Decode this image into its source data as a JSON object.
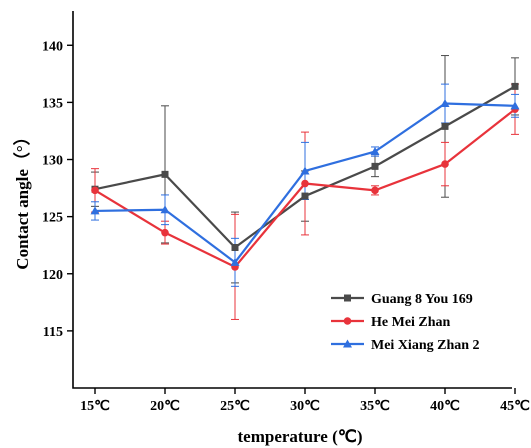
{
  "chart_data": {
    "type": "line",
    "title": "",
    "xlabel": "temperature (℃)",
    "ylabel": "Contact angle（°）",
    "categories": [
      "15℃",
      "20℃",
      "25℃",
      "30℃",
      "35℃",
      "40℃",
      "45℃"
    ],
    "ylim": [
      110,
      143
    ],
    "yticks": [
      115,
      120,
      125,
      130,
      135,
      140
    ],
    "grid": false,
    "legend_position": "bottom-right",
    "series": [
      {
        "name": "Guang 8 You 169",
        "color": "#4a4a4a",
        "marker": "square",
        "values": [
          127.4,
          128.7,
          122.3,
          126.8,
          129.4,
          132.9,
          136.4
        ],
        "errors": [
          1.5,
          6.0,
          3.1,
          2.2,
          0.9,
          6.2,
          2.5
        ]
      },
      {
        "name": "He Mei Zhan",
        "color": "#e8333b",
        "marker": "circle",
        "values": [
          127.3,
          123.6,
          120.6,
          127.9,
          127.3,
          129.6,
          134.4
        ],
        "errors": [
          1.9,
          1.0,
          4.6,
          4.5,
          0.4,
          1.9,
          2.2
        ]
      },
      {
        "name": "Mei Xiang Zhan 2",
        "color": "#2f6fdf",
        "marker": "triangle",
        "values": [
          125.5,
          125.6,
          121.0,
          129.0,
          130.7,
          134.9,
          134.7
        ],
        "errors": [
          0.8,
          1.3,
          2.1,
          2.5,
          0.4,
          1.7,
          1.0
        ]
      }
    ]
  }
}
